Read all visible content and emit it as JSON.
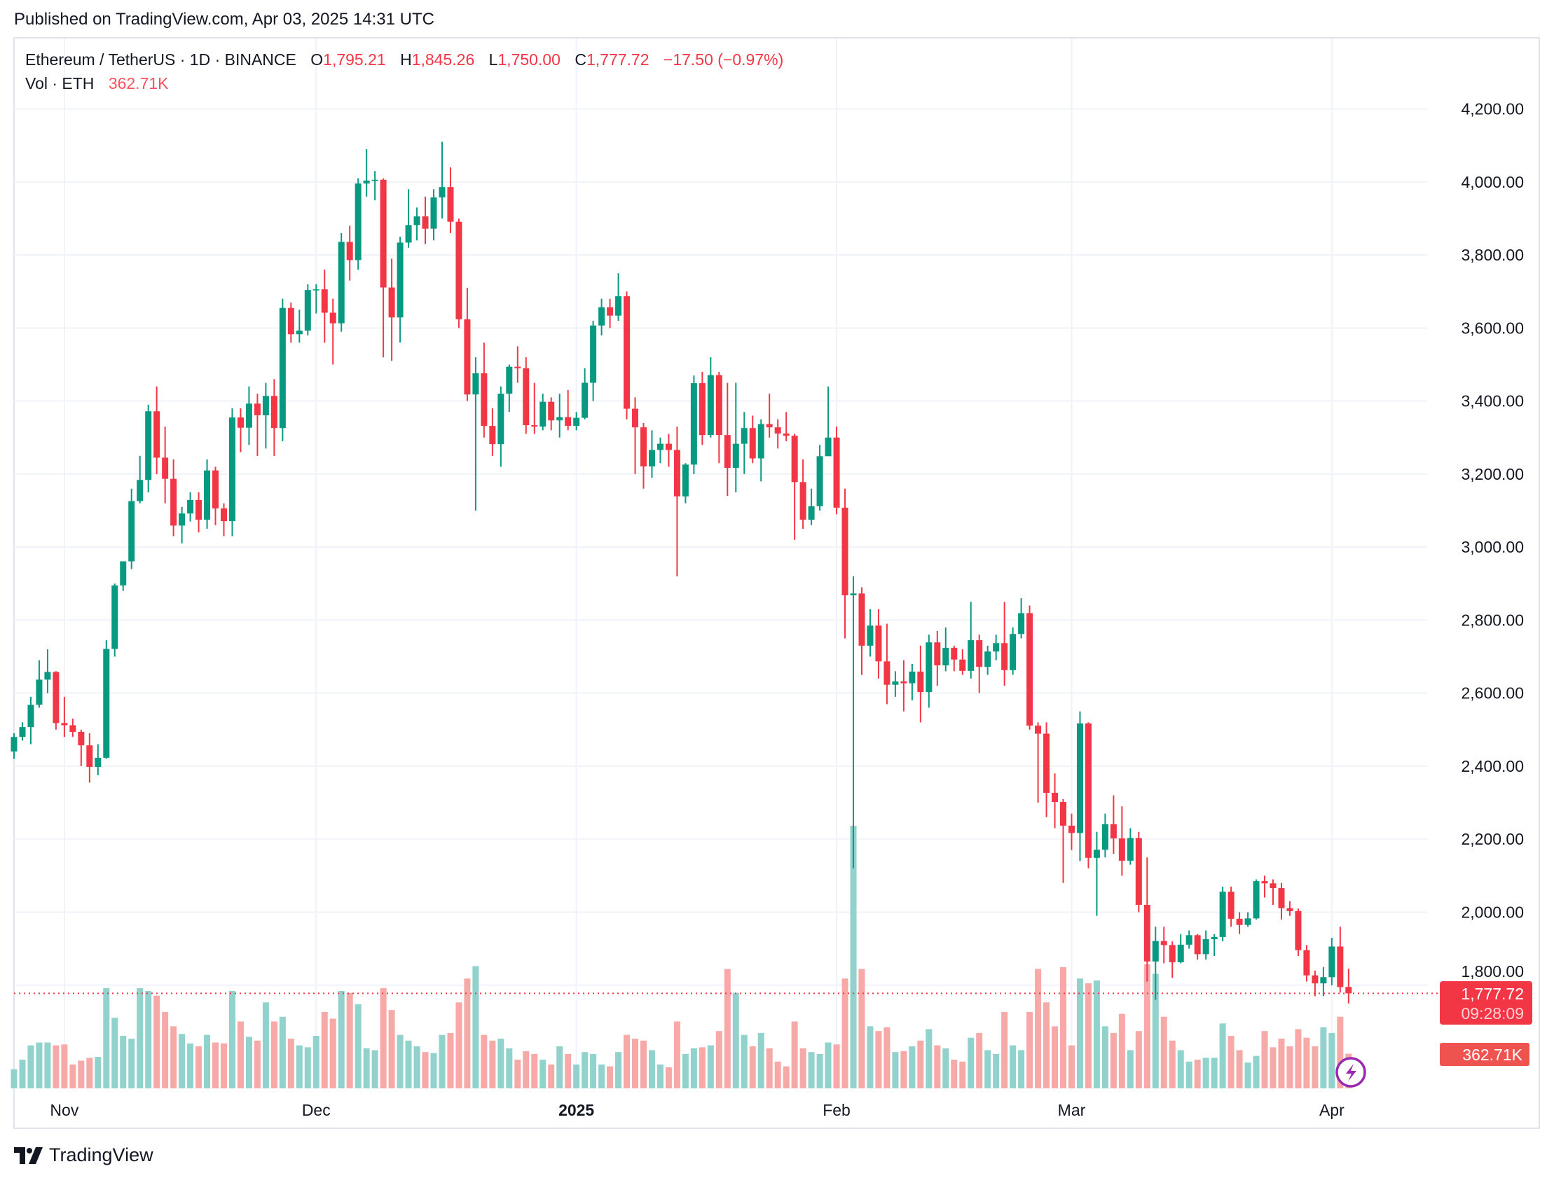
{
  "published": "Published on TradingView.com, Apr 03, 2025 14:31 UTC",
  "legend": {
    "symbol": "Ethereum / TetherUS · 1D · BINANCE",
    "open_label": "O",
    "open": "1,795.21",
    "high_label": "H",
    "high": "1,845.26",
    "low_label": "L",
    "low": "1,750.00",
    "close_label": "C",
    "close": "1,777.72",
    "change": "−17.50 (−0.97%)",
    "vol_label": "Vol · ETH",
    "vol": "362.71K"
  },
  "price_tag": {
    "price": "1,777.72",
    "countdown": "09:28:09"
  },
  "vol_tag": "362.71K",
  "branding": "TradingView",
  "colors": {
    "up": "#089981",
    "down": "#F23645",
    "vol_up": "#92D2CC",
    "vol_down": "#F7A9A7",
    "grid": "#F0F3FA",
    "alert_icon": "#9C27B0"
  },
  "icons": {
    "alert": "lightning-bolt-icon",
    "logo": "tradingview-logo-icon"
  },
  "chart_data": {
    "type": "candlestick",
    "symbol": "ETHUSDT",
    "interval": "1D",
    "ylim": [
      1600,
      4350
    ],
    "y_ticks": [
      4200,
      4000,
      3800,
      3600,
      3400,
      3200,
      3000,
      2800,
      2600,
      2400,
      2200,
      2000,
      1800
    ],
    "y_tick_labels": [
      "4,200.00",
      "4,000.00",
      "3,800.00",
      "3,600.00",
      "3,400.00",
      "3,200.00",
      "3,000.00",
      "2,800.00",
      "2,600.00",
      "2,400.00",
      "2,200.00",
      "2,000.00",
      "1,800.00"
    ],
    "x_ticks": [
      {
        "date": "2024-11-01",
        "label": "Nov",
        "bold": false
      },
      {
        "date": "2024-12-01",
        "label": "Dec",
        "bold": false
      },
      {
        "date": "2025-01-01",
        "label": "2025",
        "bold": true
      },
      {
        "date": "2025-02-01",
        "label": "Feb",
        "bold": false
      },
      {
        "date": "2025-03-01",
        "label": "Mar",
        "bold": false
      },
      {
        "date": "2025-04-01",
        "label": "Apr",
        "bold": false
      }
    ],
    "last_price": 1777.72,
    "grid": true,
    "columns": [
      "date",
      "open",
      "high",
      "low",
      "close",
      "volume_k"
    ],
    "candles": [
      [
        "2024-10-26",
        2440,
        2490,
        2420,
        2480,
        200
      ],
      [
        "2024-10-27",
        2480,
        2520,
        2470,
        2507,
        300
      ],
      [
        "2024-10-28",
        2507,
        2590,
        2460,
        2568,
        450
      ],
      [
        "2024-10-29",
        2568,
        2690,
        2560,
        2637,
        480
      ],
      [
        "2024-10-30",
        2637,
        2720,
        2600,
        2658,
        480
      ],
      [
        "2024-10-31",
        2658,
        2660,
        2500,
        2518,
        450
      ],
      [
        "2024-11-01",
        2518,
        2590,
        2480,
        2512,
        460
      ],
      [
        "2024-11-02",
        2512,
        2530,
        2480,
        2494,
        250
      ],
      [
        "2024-11-03",
        2494,
        2500,
        2400,
        2457,
        290
      ],
      [
        "2024-11-04",
        2457,
        2490,
        2355,
        2398,
        320
      ],
      [
        "2024-11-05",
        2398,
        2460,
        2375,
        2423,
        330
      ],
      [
        "2024-11-06",
        2423,
        2745,
        2420,
        2721,
        1050
      ],
      [
        "2024-11-07",
        2721,
        2900,
        2700,
        2895,
        740
      ],
      [
        "2024-11-08",
        2895,
        2960,
        2880,
        2961,
        550
      ],
      [
        "2024-11-09",
        2961,
        3160,
        2940,
        3126,
        520
      ],
      [
        "2024-11-10",
        3126,
        3250,
        3120,
        3184,
        1050
      ],
      [
        "2024-11-11",
        3184,
        3390,
        3150,
        3372,
        1020
      ],
      [
        "2024-11-12",
        3372,
        3440,
        3200,
        3245,
        970
      ],
      [
        "2024-11-13",
        3245,
        3330,
        3120,
        3187,
        800
      ],
      [
        "2024-11-14",
        3187,
        3240,
        3030,
        3059,
        650
      ],
      [
        "2024-11-15",
        3059,
        3110,
        3010,
        3092,
        570
      ],
      [
        "2024-11-16",
        3092,
        3150,
        3070,
        3129,
        470
      ],
      [
        "2024-11-17",
        3129,
        3150,
        3040,
        3075,
        440
      ],
      [
        "2024-11-18",
        3075,
        3240,
        3050,
        3210,
        560
      ],
      [
        "2024-11-19",
        3210,
        3220,
        3060,
        3106,
        480
      ],
      [
        "2024-11-20",
        3106,
        3120,
        3030,
        3071,
        470
      ],
      [
        "2024-11-21",
        3071,
        3380,
        3030,
        3355,
        1020
      ],
      [
        "2024-11-22",
        3355,
        3380,
        3260,
        3327,
        700
      ],
      [
        "2024-11-23",
        3327,
        3440,
        3280,
        3393,
        540
      ],
      [
        "2024-11-24",
        3393,
        3420,
        3250,
        3361,
        500
      ],
      [
        "2024-11-25",
        3361,
        3450,
        3270,
        3414,
        900
      ],
      [
        "2024-11-26",
        3414,
        3460,
        3250,
        3326,
        700
      ],
      [
        "2024-11-27",
        3326,
        3680,
        3290,
        3655,
        750
      ],
      [
        "2024-11-28",
        3655,
        3670,
        3560,
        3583,
        520
      ],
      [
        "2024-11-29",
        3583,
        3650,
        3560,
        3593,
        450
      ],
      [
        "2024-11-30",
        3593,
        3720,
        3580,
        3704,
        430
      ],
      [
        "2024-12-01",
        3704,
        3720,
        3640,
        3706,
        550
      ],
      [
        "2024-12-02",
        3706,
        3760,
        3560,
        3642,
        800
      ],
      [
        "2024-12-03",
        3642,
        3680,
        3500,
        3613,
        730
      ],
      [
        "2024-12-04",
        3613,
        3860,
        3590,
        3836,
        1020
      ],
      [
        "2024-12-05",
        3836,
        3880,
        3730,
        3786,
        1000
      ],
      [
        "2024-12-06",
        3786,
        4010,
        3760,
        3996,
        880
      ],
      [
        "2024-12-07",
        3996,
        4090,
        3960,
        4004,
        420
      ],
      [
        "2024-12-08",
        4004,
        4030,
        3950,
        4006,
        400
      ],
      [
        "2024-12-09",
        4006,
        4010,
        3520,
        3711,
        1050
      ],
      [
        "2024-12-10",
        3711,
        3790,
        3510,
        3629,
        820
      ],
      [
        "2024-12-11",
        3629,
        3850,
        3560,
        3834,
        560
      ],
      [
        "2024-12-12",
        3834,
        3980,
        3820,
        3882,
        500
      ],
      [
        "2024-12-13",
        3882,
        3930,
        3840,
        3906,
        440
      ],
      [
        "2024-12-14",
        3906,
        3960,
        3830,
        3872,
        380
      ],
      [
        "2024-12-15",
        3872,
        3980,
        3840,
        3958,
        370
      ],
      [
        "2024-12-16",
        3958,
        4110,
        3900,
        3986,
        560
      ],
      [
        "2024-12-17",
        3986,
        4040,
        3860,
        3891,
        580
      ],
      [
        "2024-12-18",
        3891,
        3900,
        3600,
        3624,
        900
      ],
      [
        "2024-12-19",
        3624,
        3710,
        3400,
        3418,
        1150
      ],
      [
        "2024-12-20",
        3418,
        3520,
        3100,
        3476,
        1280
      ],
      [
        "2024-12-21",
        3476,
        3560,
        3300,
        3332,
        560
      ],
      [
        "2024-12-22",
        3332,
        3380,
        3250,
        3282,
        500
      ],
      [
        "2024-12-23",
        3282,
        3440,
        3220,
        3420,
        520
      ],
      [
        "2024-12-24",
        3420,
        3500,
        3370,
        3494,
        420
      ],
      [
        "2024-12-25",
        3494,
        3550,
        3450,
        3490,
        300
      ],
      [
        "2024-12-26",
        3490,
        3520,
        3310,
        3334,
        390
      ],
      [
        "2024-12-27",
        3334,
        3450,
        3310,
        3330,
        360
      ],
      [
        "2024-12-28",
        3330,
        3420,
        3320,
        3398,
        300
      ],
      [
        "2024-12-29",
        3398,
        3410,
        3320,
        3347,
        250
      ],
      [
        "2024-12-30",
        3347,
        3420,
        3300,
        3356,
        440
      ],
      [
        "2024-12-31",
        3356,
        3430,
        3320,
        3332,
        360
      ],
      [
        "2025-01-01",
        3332,
        3370,
        3320,
        3354,
        250
      ],
      [
        "2025-01-02",
        3354,
        3490,
        3350,
        3450,
        380
      ],
      [
        "2025-01-03",
        3450,
        3620,
        3400,
        3607,
        360
      ],
      [
        "2025-01-04",
        3607,
        3680,
        3580,
        3657,
        250
      ],
      [
        "2025-01-05",
        3657,
        3680,
        3600,
        3634,
        230
      ],
      [
        "2025-01-06",
        3634,
        3750,
        3620,
        3687,
        380
      ],
      [
        "2025-01-07",
        3687,
        3700,
        3350,
        3379,
        560
      ],
      [
        "2025-01-08",
        3379,
        3410,
        3200,
        3328,
        520
      ],
      [
        "2025-01-09",
        3328,
        3340,
        3160,
        3221,
        500
      ],
      [
        "2025-01-10",
        3221,
        3320,
        3190,
        3266,
        400
      ],
      [
        "2025-01-11",
        3266,
        3300,
        3230,
        3283,
        250
      ],
      [
        "2025-01-12",
        3283,
        3310,
        3220,
        3266,
        220
      ],
      [
        "2025-01-13",
        3266,
        3330,
        2920,
        3139,
        700
      ],
      [
        "2025-01-14",
        3139,
        3230,
        3120,
        3226,
        360
      ],
      [
        "2025-01-15",
        3226,
        3470,
        3200,
        3449,
        420
      ],
      [
        "2025-01-16",
        3449,
        3480,
        3280,
        3307,
        430
      ],
      [
        "2025-01-17",
        3307,
        3520,
        3300,
        3471,
        450
      ],
      [
        "2025-01-18",
        3471,
        3480,
        3230,
        3307,
        600
      ],
      [
        "2025-01-19",
        3307,
        3450,
        3140,
        3217,
        1250
      ],
      [
        "2025-01-20",
        3217,
        3450,
        3150,
        3283,
        1000
      ],
      [
        "2025-01-21",
        3283,
        3370,
        3200,
        3326,
        560
      ],
      [
        "2025-01-22",
        3326,
        3360,
        3230,
        3243,
        440
      ],
      [
        "2025-01-23",
        3243,
        3350,
        3180,
        3337,
        580
      ],
      [
        "2025-01-24",
        3337,
        3420,
        3300,
        3328,
        420
      ],
      [
        "2025-01-25",
        3328,
        3350,
        3270,
        3311,
        280
      ],
      [
        "2025-01-26",
        3311,
        3370,
        3290,
        3305,
        230
      ],
      [
        "2025-01-27",
        3305,
        3310,
        3020,
        3178,
        700
      ],
      [
        "2025-01-28",
        3178,
        3240,
        3050,
        3075,
        420
      ],
      [
        "2025-01-29",
        3075,
        3160,
        3060,
        3112,
        380
      ],
      [
        "2025-01-30",
        3112,
        3280,
        3100,
        3249,
        360
      ],
      [
        "2025-01-31",
        3249,
        3440,
        3270,
        3300,
        480
      ],
      [
        "2025-02-01",
        3300,
        3330,
        3090,
        3108,
        460
      ],
      [
        "2025-02-02",
        3108,
        3160,
        2750,
        2868,
        1150
      ],
      [
        "2025-02-03",
        2868,
        2920,
        2120,
        2873,
        2750
      ],
      [
        "2025-02-04",
        2873,
        2890,
        2650,
        2730,
        1250
      ],
      [
        "2025-02-05",
        2730,
        2830,
        2700,
        2785,
        650
      ],
      [
        "2025-02-06",
        2785,
        2830,
        2640,
        2687,
        600
      ],
      [
        "2025-02-07",
        2687,
        2790,
        2570,
        2623,
        640
      ],
      [
        "2025-02-08",
        2623,
        2660,
        2590,
        2632,
        380
      ],
      [
        "2025-02-09",
        2632,
        2690,
        2550,
        2627,
        390
      ],
      [
        "2025-02-10",
        2627,
        2680,
        2580,
        2659,
        440
      ],
      [
        "2025-02-11",
        2659,
        2730,
        2520,
        2603,
        500
      ],
      [
        "2025-02-12",
        2603,
        2760,
        2560,
        2739,
        620
      ],
      [
        "2025-02-13",
        2739,
        2770,
        2620,
        2676,
        450
      ],
      [
        "2025-02-14",
        2676,
        2780,
        2660,
        2724,
        420
      ],
      [
        "2025-02-15",
        2724,
        2730,
        2660,
        2692,
        300
      ],
      [
        "2025-02-16",
        2692,
        2720,
        2650,
        2661,
        280
      ],
      [
        "2025-02-17",
        2661,
        2850,
        2640,
        2745,
        530
      ],
      [
        "2025-02-18",
        2745,
        2760,
        2600,
        2672,
        580
      ],
      [
        "2025-02-19",
        2672,
        2730,
        2650,
        2714,
        400
      ],
      [
        "2025-02-20",
        2714,
        2760,
        2690,
        2737,
        360
      ],
      [
        "2025-02-21",
        2737,
        2850,
        2620,
        2663,
        800
      ],
      [
        "2025-02-22",
        2663,
        2780,
        2650,
        2762,
        450
      ],
      [
        "2025-02-23",
        2762,
        2860,
        2750,
        2819,
        400
      ],
      [
        "2025-02-24",
        2819,
        2840,
        2500,
        2511,
        800
      ],
      [
        "2025-02-25",
        2511,
        2520,
        2300,
        2489,
        1250
      ],
      [
        "2025-02-26",
        2489,
        2520,
        2260,
        2327,
        900
      ],
      [
        "2025-02-27",
        2327,
        2380,
        2230,
        2302,
        650
      ],
      [
        "2025-02-28",
        2302,
        2310,
        2080,
        2237,
        1270
      ],
      [
        "2025-03-01",
        2237,
        2270,
        2170,
        2217,
        450
      ],
      [
        "2025-03-02",
        2217,
        2550,
        2140,
        2517,
        1150
      ],
      [
        "2025-03-03",
        2517,
        2520,
        2120,
        2149,
        1100
      ],
      [
        "2025-03-04",
        2149,
        2220,
        1990,
        2171,
        1130
      ],
      [
        "2025-03-05",
        2171,
        2270,
        2150,
        2241,
        650
      ],
      [
        "2025-03-06",
        2241,
        2320,
        2160,
        2202,
        580
      ],
      [
        "2025-03-07",
        2202,
        2290,
        2100,
        2141,
        780
      ],
      [
        "2025-03-08",
        2141,
        2230,
        2130,
        2203,
        400
      ],
      [
        "2025-03-09",
        2203,
        2220,
        2000,
        2020,
        600
      ],
      [
        "2025-03-10",
        2020,
        2150,
        1810,
        1865,
        1300
      ],
      [
        "2025-03-11",
        1865,
        1960,
        1760,
        1921,
        1200
      ],
      [
        "2025-03-12",
        1921,
        1960,
        1860,
        1910,
        750
      ],
      [
        "2025-03-13",
        1910,
        1920,
        1820,
        1863,
        500
      ],
      [
        "2025-03-14",
        1863,
        1940,
        1860,
        1911,
        400
      ],
      [
        "2025-03-15",
        1911,
        1950,
        1900,
        1937,
        280
      ],
      [
        "2025-03-16",
        1937,
        1940,
        1870,
        1885,
        300
      ],
      [
        "2025-03-17",
        1885,
        1950,
        1870,
        1926,
        320
      ],
      [
        "2025-03-18",
        1926,
        1940,
        1880,
        1932,
        320
      ],
      [
        "2025-03-19",
        1932,
        2070,
        1920,
        2056,
        680
      ],
      [
        "2025-03-20",
        2056,
        2070,
        1960,
        1982,
        550
      ],
      [
        "2025-03-21",
        1982,
        2000,
        1940,
        1965,
        400
      ],
      [
        "2025-03-22",
        1965,
        2000,
        1960,
        1983,
        270
      ],
      [
        "2025-03-23",
        1983,
        2090,
        1980,
        2085,
        340
      ],
      [
        "2025-03-24",
        2085,
        2100,
        2040,
        2079,
        600
      ],
      [
        "2025-03-25",
        2079,
        2090,
        2020,
        2066,
        430
      ],
      [
        "2025-03-26",
        2066,
        2080,
        1980,
        2011,
        520
      ],
      [
        "2025-03-27",
        2011,
        2030,
        1990,
        2003,
        440
      ],
      [
        "2025-03-28",
        2003,
        2010,
        1880,
        1896,
        620
      ],
      [
        "2025-03-29",
        1896,
        1910,
        1810,
        1827,
        530
      ],
      [
        "2025-03-30",
        1827,
        1840,
        1770,
        1805,
        440
      ],
      [
        "2025-03-31",
        1805,
        1850,
        1770,
        1822,
        640
      ],
      [
        "2025-04-01",
        1822,
        1930,
        1800,
        1906,
        580
      ],
      [
        "2025-04-02",
        1906,
        1960,
        1780,
        1795,
        750
      ],
      [
        "2025-04-03",
        1795.21,
        1845.26,
        1750.0,
        1777.72,
        362.71
      ]
    ]
  }
}
